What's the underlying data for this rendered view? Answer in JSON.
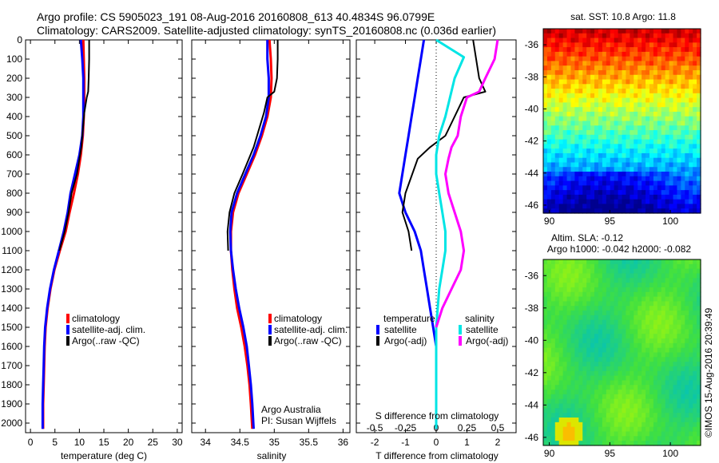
{
  "header": {
    "line1": "Argo profile: CS 5905023_191 08-Aug-2016 20160808_613 40.4834S 96.0799E",
    "line2": "Climatology: CARS2009. Satellite-adjusted climatology: synTS_20160808.nc (0.036d earlier)"
  },
  "colors": {
    "climatology": "#ff0000",
    "satellite": "#0000ff",
    "argo": "#000000",
    "sal_satellite": "#00e5e5",
    "sal_argo": "#ff00ff"
  },
  "chart_data": [
    {
      "id": "temperature",
      "type": "line",
      "xlabel": "temperature (deg C)",
      "ylabel": "",
      "xlim": [
        -1,
        31
      ],
      "ylim": [
        2050,
        0
      ],
      "xticks": [
        "0",
        "5",
        "10",
        "15",
        "20",
        "25",
        "30"
      ],
      "yticks": [
        "0",
        "100",
        "200",
        "300",
        "400",
        "500",
        "600",
        "700",
        "800",
        "900",
        "1000",
        "1100",
        "1200",
        "1300",
        "1400",
        "1500",
        "1600",
        "1700",
        "1800",
        "1900",
        "2000"
      ],
      "legend": [
        "climatology",
        "satellite-adj. clim.",
        "Argo(..raw -QC)"
      ],
      "series": [
        {
          "name": "climatology",
          "color": "#ff0000",
          "x": [
            10.8,
            10.9,
            11.0,
            11.0,
            10.9,
            10.7,
            10.3,
            9.7,
            8.9,
            8.0,
            7.2,
            6.0,
            4.9,
            4.1,
            3.5,
            3.1,
            2.9,
            2.8,
            2.7,
            2.6,
            2.6
          ],
          "y": [
            0,
            100,
            200,
            300,
            400,
            500,
            600,
            700,
            800,
            900,
            1000,
            1100,
            1200,
            1300,
            1400,
            1500,
            1600,
            1700,
            1800,
            1900,
            2030
          ]
        },
        {
          "name": "satellite-adj. clim.",
          "color": "#0000ff",
          "x": [
            10.3,
            10.6,
            10.8,
            10.8,
            10.8,
            10.6,
            10.0,
            9.1,
            8.2,
            7.6,
            6.8,
            5.8,
            4.8,
            4.0,
            3.4,
            3.0,
            2.8,
            2.7,
            2.6,
            2.5,
            2.5
          ],
          "y": [
            0,
            100,
            200,
            300,
            400,
            500,
            600,
            700,
            800,
            900,
            1000,
            1100,
            1200,
            1300,
            1400,
            1500,
            1600,
            1700,
            1800,
            1900,
            2030
          ]
        },
        {
          "name": "Argo(..raw -QC)",
          "color": "#000000",
          "x": [
            12.0,
            12.0,
            11.9,
            11.8,
            11.5,
            11.0,
            10.4,
            9.5,
            8.4,
            7.8,
            7.0,
            5.9
          ],
          "y": [
            0,
            100,
            200,
            270,
            300,
            380,
            560,
            700,
            800,
            900,
            1000,
            1100
          ]
        }
      ]
    },
    {
      "id": "salinity",
      "type": "line",
      "xlabel": "salinity",
      "ylabel": "",
      "xlim": [
        33.8,
        36.1
      ],
      "ylim": [
        2050,
        0
      ],
      "xticks": [
        "34",
        "34.5",
        "35",
        "35.5",
        "36"
      ],
      "legend": [
        "climatology",
        "satellite-adj. clim.",
        "Argo(..raw -QC)"
      ],
      "annotation": [
        "Argo Australia",
        "PI: Susan Wijffels"
      ],
      "series": [
        {
          "name": "climatology",
          "color": "#ff0000",
          "x": [
            34.93,
            34.95,
            34.96,
            34.95,
            34.9,
            34.82,
            34.72,
            34.6,
            34.48,
            34.4,
            34.37,
            34.37,
            34.39,
            34.42,
            34.46,
            34.52,
            34.57,
            34.61,
            34.64,
            34.66,
            34.68
          ],
          "y": [
            0,
            100,
            200,
            300,
            400,
            500,
            600,
            700,
            800,
            900,
            1000,
            1100,
            1200,
            1300,
            1400,
            1500,
            1600,
            1700,
            1800,
            1900,
            2030
          ]
        },
        {
          "name": "satellite-adj. clim.",
          "color": "#0000ff",
          "x": [
            34.9,
            34.9,
            34.92,
            34.92,
            34.88,
            34.8,
            34.7,
            34.58,
            34.46,
            34.38,
            34.36,
            34.37,
            34.4,
            34.44,
            34.49,
            34.55,
            34.6,
            34.63,
            34.66,
            34.68,
            34.7
          ],
          "y": [
            0,
            100,
            200,
            300,
            400,
            500,
            600,
            700,
            800,
            900,
            1000,
            1100,
            1200,
            1300,
            1400,
            1500,
            1600,
            1700,
            1800,
            1900,
            2030
          ]
        },
        {
          "name": "Argo(..raw -QC)",
          "color": "#000000",
          "x": [
            35.05,
            35.05,
            35.04,
            35.0,
            34.9,
            34.85,
            34.7,
            34.54,
            34.42,
            34.35,
            34.32,
            34.33
          ],
          "y": [
            0,
            100,
            200,
            270,
            300,
            380,
            560,
            700,
            800,
            900,
            1000,
            1100
          ]
        }
      ]
    },
    {
      "id": "differences",
      "type": "line",
      "xlabel": "T difference from climatology",
      "x2label": "S difference from climatology",
      "xlim": [
        -2.6,
        2.6
      ],
      "ylim": [
        2050,
        0
      ],
      "xticks": [
        "-2",
        "-1",
        "0",
        "1",
        "2"
      ],
      "x2ticks": [
        "-0.5",
        "-0.25",
        "0",
        "0.25",
        "0.5"
      ],
      "legend_headers": [
        "temperature",
        "salinity"
      ],
      "legend": [
        "satellite",
        "Argo(-adj)",
        "satellite",
        "Argo(-adj)"
      ],
      "series": [
        {
          "name": "temperature satellite",
          "color": "#0000ff",
          "x": [
            -0.4,
            -0.5,
            -0.6,
            -0.7,
            -0.8,
            -0.9,
            -1.0,
            -1.2,
            -1.0,
            -0.7,
            -0.5,
            -0.4,
            -0.3,
            -0.2,
            -0.1,
            0.0,
            0.0,
            0.0,
            0.0,
            0.0
          ],
          "y": [
            0,
            100,
            200,
            300,
            400,
            500,
            600,
            800,
            900,
            1000,
            1100,
            1200,
            1300,
            1400,
            1500,
            1600,
            1700,
            1800,
            1900,
            2030
          ]
        },
        {
          "name": "temperature Argo(-adj)",
          "color": "#000000",
          "x": [
            1.2,
            1.3,
            1.4,
            1.6,
            0.9,
            0.6,
            0.3,
            -0.2,
            -0.6,
            -1.0,
            -1.1,
            -0.9,
            -0.8
          ],
          "y": [
            0,
            100,
            200,
            270,
            300,
            400,
            500,
            560,
            620,
            800,
            900,
            1000,
            1100
          ]
        },
        {
          "name": "salinity satellite",
          "color": "#00e5e5",
          "x": [
            0.0,
            0.9,
            0.6,
            0.3,
            0.1,
            0.0,
            0.0,
            0.1,
            0.2,
            0.3,
            0.3,
            0.2,
            0.1,
            0.05,
            0.0,
            0.0,
            0.0,
            0.0
          ],
          "y": [
            0,
            90,
            200,
            400,
            500,
            600,
            700,
            800,
            900,
            1000,
            1100,
            1200,
            1300,
            1400,
            1500,
            1600,
            1800,
            2030
          ]
        },
        {
          "name": "salinity Argo(-adj)",
          "color": "#ff00ff",
          "x": [
            2.0,
            1.9,
            1.6,
            1.4,
            1.0,
            0.8,
            0.7,
            0.5,
            0.4,
            0.3,
            0.4,
            0.6,
            0.8,
            0.9,
            0.8,
            0.5,
            0.2,
            0.0
          ],
          "y": [
            0,
            100,
            200,
            270,
            300,
            400,
            500,
            560,
            620,
            700,
            800,
            900,
            1000,
            1100,
            1200,
            1300,
            1400,
            1500
          ]
        }
      ]
    },
    {
      "id": "sst-map",
      "type": "heatmap",
      "title": "sat. SST: 10.8 Argo: 11.8",
      "xlim": [
        89.5,
        102.5
      ],
      "ylim": [
        -46.5,
        -35
      ],
      "xticks": [
        "90",
        "95",
        "100"
      ],
      "yticks": [
        "-36",
        "-38",
        "-40",
        "-42",
        "-44",
        "-46"
      ],
      "colormap": [
        "#00008f",
        "#0000ff",
        "#0080ff",
        "#00ffff",
        "#80ff80",
        "#ffff00",
        "#ff8000",
        "#ff0000",
        "#800000"
      ]
    },
    {
      "id": "sla-map",
      "type": "heatmap",
      "title": "Altim. SLA: -0.12",
      "subtitle": "Argo h1000: -0.042 h2000: -0.082",
      "xlim": [
        89.5,
        102.5
      ],
      "ylim": [
        -46.5,
        -35
      ],
      "xticks": [
        "90",
        "95",
        "100"
      ],
      "yticks": [
        "-36",
        "-38",
        "-40",
        "-42",
        "-44",
        "-46"
      ]
    }
  ],
  "footer": {
    "credit": "©IMOS 15-Aug-2016 20:39:49"
  }
}
